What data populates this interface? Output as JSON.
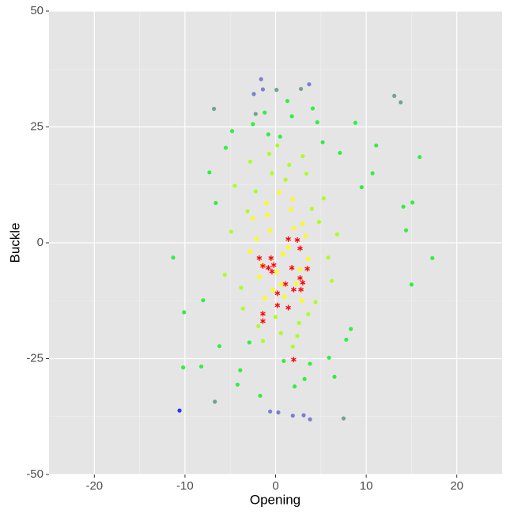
{
  "chart_data": {
    "type": "scatter",
    "x_label": "Opening",
    "y_label": "Buckle",
    "xlim": [
      -25,
      25
    ],
    "ylim": [
      -50,
      50
    ],
    "xticks": [
      -20,
      -10,
      0,
      10,
      20
    ],
    "yticks": [
      -50,
      -25,
      0,
      25,
      50
    ],
    "x_minor": [
      -15,
      -5,
      5,
      15
    ],
    "y_minor": [
      -37.5,
      -12.5,
      12.5,
      37.5
    ],
    "grid": true,
    "series": [
      {
        "color": "#33ee44",
        "marker": "circle",
        "x": [
          -5.5,
          -4.8,
          -6.2,
          -3.9,
          -2.5,
          -1.2,
          0.5,
          1.8,
          3.2,
          4.6,
          5.9,
          7.1,
          8.3,
          9.5,
          -7.3,
          -8.0,
          6.5,
          -4.2,
          2.1,
          -0.8,
          3.8,
          5.2,
          -2.9,
          0.9,
          7.8,
          -6.6,
          4.1,
          -1.7,
          1.3,
          8.8,
          -11.3,
          -10.1,
          -10.2,
          -8.2,
          17.3,
          15.9,
          14.1,
          15.1,
          14.4,
          11.1,
          15.0,
          10.7
        ],
        "values": [
          20.5,
          24.1,
          -22.3,
          -27.5,
          25.6,
          28.1,
          22.9,
          27.3,
          -29.4,
          26.0,
          -24.8,
          19.4,
          -18.6,
          12.0,
          15.2,
          -12.4,
          -28.9,
          -30.6,
          -31.0,
          23.4,
          -26.1,
          21.7,
          -21.5,
          -25.5,
          -20.9,
          8.6,
          29.0,
          -33.0,
          30.6,
          25.9,
          -3.2,
          -15.0,
          -26.9,
          -26.7,
          -3.3,
          18.5,
          7.8,
          8.7,
          2.7,
          21.0,
          -9.0,
          15.0
        ]
      },
      {
        "color": "#aaff22",
        "marker": "circle",
        "x": [
          -4.5,
          -3.6,
          -2.8,
          -1.9,
          -0.7,
          0.6,
          1.5,
          2.6,
          3.4,
          4.4,
          5.3,
          6.2,
          -4.9,
          -3.1,
          -1.4,
          0.2,
          1.9,
          3.0,
          4.8,
          5.8,
          -5.6,
          6.8,
          -2.2,
          2.4,
          0.0,
          -3.8,
          4.0,
          1.1,
          -0.4,
          3.6
        ],
        "values": [
          12.3,
          -14.2,
          17.5,
          -18.0,
          19.2,
          -19.5,
          16.8,
          -17.3,
          14.9,
          -12.8,
          9.6,
          -8.2,
          2.4,
          6.8,
          -21.2,
          21.0,
          -22.4,
          18.7,
          4.5,
          -3.2,
          -6.9,
          1.8,
          11.1,
          -20.1,
          -16.0,
          -9.7,
          7.3,
          13.6,
          15.0,
          -15.4
        ]
      },
      {
        "color": "#ffff00",
        "marker": "circle",
        "x": [
          -2.5,
          -1.8,
          -1.0,
          -0.3,
          0.4,
          1.0,
          1.7,
          2.3,
          3.0,
          3.6,
          -2.1,
          -0.6,
          0.8,
          2.0,
          3.3,
          -1.5,
          0.1,
          1.4,
          2.7,
          -0.9,
          1.9,
          0.6,
          -1.2,
          2.9,
          -2.8
        ],
        "values": [
          5.3,
          -7.4,
          8.6,
          -10.2,
          10.9,
          -11.6,
          7.2,
          -8.8,
          4.1,
          -3.5,
          0.8,
          2.6,
          -2.4,
          3.1,
          1.5,
          -4.8,
          -6.3,
          -1.0,
          -5.7,
          6.0,
          9.4,
          -9.0,
          -12.0,
          -12.5,
          -1.9
        ]
      },
      {
        "color": "#6fa58c",
        "marker": "circle",
        "x": [
          13.1,
          13.8,
          0.1,
          -6.8,
          -6.7,
          7.5,
          -2.2,
          2.8
        ],
        "values": [
          31.7,
          30.3,
          33.0,
          28.9,
          -34.3,
          -37.9,
          27.8,
          33.2
        ]
      },
      {
        "color": "#7b7fd0",
        "marker": "circle",
        "x": [
          -1.6,
          -1.4,
          -2.4,
          3.7,
          -0.6,
          1.9,
          3.1,
          3.8,
          0.3
        ],
        "values": [
          35.3,
          33.1,
          32.1,
          34.2,
          -36.4,
          -37.3,
          -37.2,
          -38.1,
          -36.6
        ]
      },
      {
        "color": "#3333ff",
        "marker": "circle",
        "x": [
          -10.6
        ],
        "values": [
          -36.2
        ]
      },
      {
        "color": "#ff0000",
        "marker": "asterisk",
        "x": [
          1.4,
          2.4,
          2.7,
          -1.8,
          -0.5,
          -1.4,
          -0.2,
          -0.8,
          1.8,
          3.5,
          -0.4,
          2.7,
          1.1,
          3.0,
          2.0,
          2.8,
          0.2,
          0.2,
          1.4,
          -1.4,
          -1.4,
          2.0
        ],
        "values": [
          0.8,
          0.6,
          -1.2,
          -3.3,
          -3.3,
          -5.0,
          -4.8,
          -5.4,
          -5.4,
          -5.6,
          -6.2,
          -7.6,
          -8.9,
          -8.6,
          -10.1,
          -10.1,
          -10.9,
          -13.5,
          -14.0,
          -15.3,
          -16.9,
          -25.2
        ]
      }
    ]
  }
}
